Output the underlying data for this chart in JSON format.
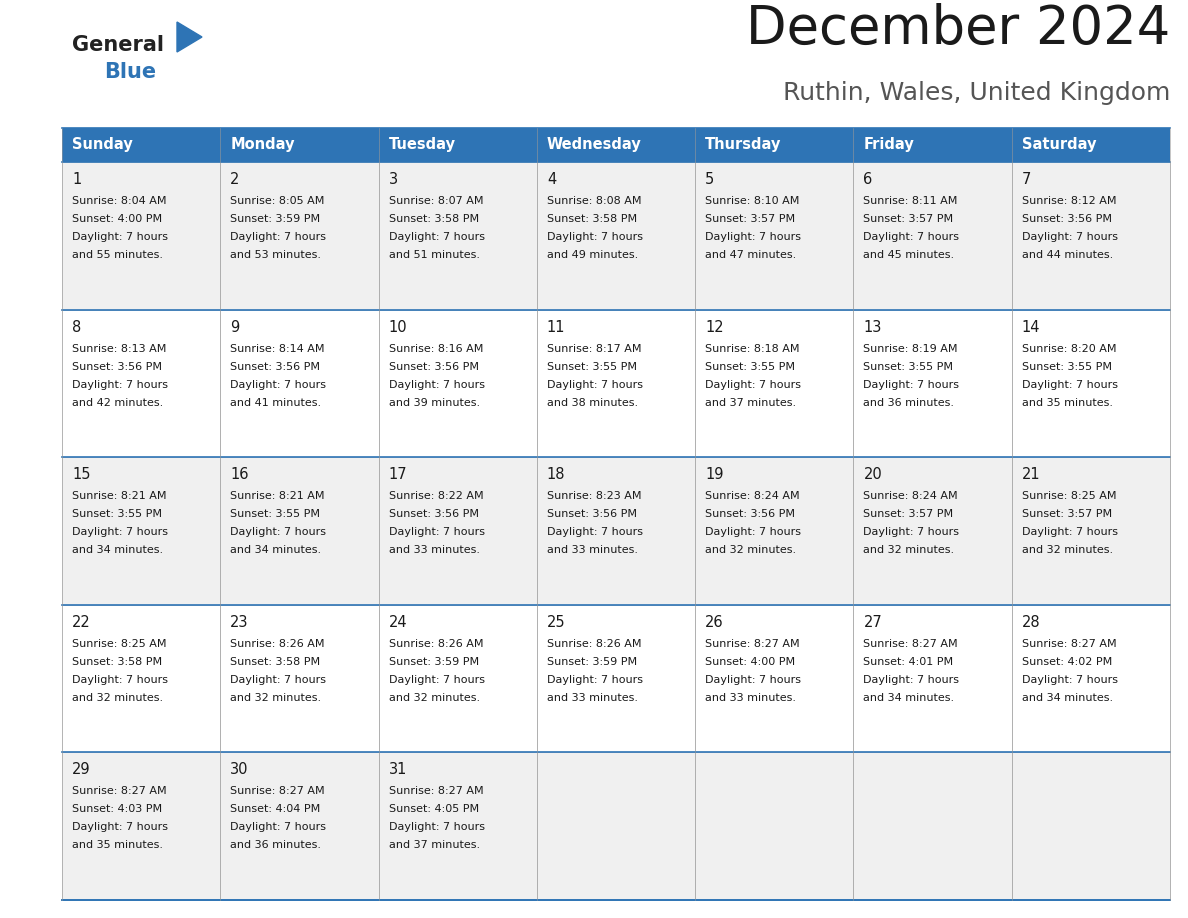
{
  "title": "December 2024",
  "subtitle": "Ruthin, Wales, United Kingdom",
  "header_color": "#2E74B5",
  "header_text_color": "#FFFFFF",
  "bg_color": "#FFFFFF",
  "cell_bg_alt": "#F0F0F0",
  "cell_bg_white": "#FFFFFF",
  "border_color": "#2E74B5",
  "days_of_week": [
    "Sunday",
    "Monday",
    "Tuesday",
    "Wednesday",
    "Thursday",
    "Friday",
    "Saturday"
  ],
  "calendar": [
    [
      {
        "day": "1",
        "sunrise": "8:04 AM",
        "sunset": "4:00 PM",
        "daylight": "7 hours and 55 minutes."
      },
      {
        "day": "2",
        "sunrise": "8:05 AM",
        "sunset": "3:59 PM",
        "daylight": "7 hours and 53 minutes."
      },
      {
        "day": "3",
        "sunrise": "8:07 AM",
        "sunset": "3:58 PM",
        "daylight": "7 hours and 51 minutes."
      },
      {
        "day": "4",
        "sunrise": "8:08 AM",
        "sunset": "3:58 PM",
        "daylight": "7 hours and 49 minutes."
      },
      {
        "day": "5",
        "sunrise": "8:10 AM",
        "sunset": "3:57 PM",
        "daylight": "7 hours and 47 minutes."
      },
      {
        "day": "6",
        "sunrise": "8:11 AM",
        "sunset": "3:57 PM",
        "daylight": "7 hours and 45 minutes."
      },
      {
        "day": "7",
        "sunrise": "8:12 AM",
        "sunset": "3:56 PM",
        "daylight": "7 hours and 44 minutes."
      }
    ],
    [
      {
        "day": "8",
        "sunrise": "8:13 AM",
        "sunset": "3:56 PM",
        "daylight": "7 hours and 42 minutes."
      },
      {
        "day": "9",
        "sunrise": "8:14 AM",
        "sunset": "3:56 PM",
        "daylight": "7 hours and 41 minutes."
      },
      {
        "day": "10",
        "sunrise": "8:16 AM",
        "sunset": "3:56 PM",
        "daylight": "7 hours and 39 minutes."
      },
      {
        "day": "11",
        "sunrise": "8:17 AM",
        "sunset": "3:55 PM",
        "daylight": "7 hours and 38 minutes."
      },
      {
        "day": "12",
        "sunrise": "8:18 AM",
        "sunset": "3:55 PM",
        "daylight": "7 hours and 37 minutes."
      },
      {
        "day": "13",
        "sunrise": "8:19 AM",
        "sunset": "3:55 PM",
        "daylight": "7 hours and 36 minutes."
      },
      {
        "day": "14",
        "sunrise": "8:20 AM",
        "sunset": "3:55 PM",
        "daylight": "7 hours and 35 minutes."
      }
    ],
    [
      {
        "day": "15",
        "sunrise": "8:21 AM",
        "sunset": "3:55 PM",
        "daylight": "7 hours and 34 minutes."
      },
      {
        "day": "16",
        "sunrise": "8:21 AM",
        "sunset": "3:55 PM",
        "daylight": "7 hours and 34 minutes."
      },
      {
        "day": "17",
        "sunrise": "8:22 AM",
        "sunset": "3:56 PM",
        "daylight": "7 hours and 33 minutes."
      },
      {
        "day": "18",
        "sunrise": "8:23 AM",
        "sunset": "3:56 PM",
        "daylight": "7 hours and 33 minutes."
      },
      {
        "day": "19",
        "sunrise": "8:24 AM",
        "sunset": "3:56 PM",
        "daylight": "7 hours and 32 minutes."
      },
      {
        "day": "20",
        "sunrise": "8:24 AM",
        "sunset": "3:57 PM",
        "daylight": "7 hours and 32 minutes."
      },
      {
        "day": "21",
        "sunrise": "8:25 AM",
        "sunset": "3:57 PM",
        "daylight": "7 hours and 32 minutes."
      }
    ],
    [
      {
        "day": "22",
        "sunrise": "8:25 AM",
        "sunset": "3:58 PM",
        "daylight": "7 hours and 32 minutes."
      },
      {
        "day": "23",
        "sunrise": "8:26 AM",
        "sunset": "3:58 PM",
        "daylight": "7 hours and 32 minutes."
      },
      {
        "day": "24",
        "sunrise": "8:26 AM",
        "sunset": "3:59 PM",
        "daylight": "7 hours and 32 minutes."
      },
      {
        "day": "25",
        "sunrise": "8:26 AM",
        "sunset": "3:59 PM",
        "daylight": "7 hours and 33 minutes."
      },
      {
        "day": "26",
        "sunrise": "8:27 AM",
        "sunset": "4:00 PM",
        "daylight": "7 hours and 33 minutes."
      },
      {
        "day": "27",
        "sunrise": "8:27 AM",
        "sunset": "4:01 PM",
        "daylight": "7 hours and 34 minutes."
      },
      {
        "day": "28",
        "sunrise": "8:27 AM",
        "sunset": "4:02 PM",
        "daylight": "7 hours and 34 minutes."
      }
    ],
    [
      {
        "day": "29",
        "sunrise": "8:27 AM",
        "sunset": "4:03 PM",
        "daylight": "7 hours and 35 minutes."
      },
      {
        "day": "30",
        "sunrise": "8:27 AM",
        "sunset": "4:04 PM",
        "daylight": "7 hours and 36 minutes."
      },
      {
        "day": "31",
        "sunrise": "8:27 AM",
        "sunset": "4:05 PM",
        "daylight": "7 hours and 37 minutes."
      },
      null,
      null,
      null,
      null
    ]
  ]
}
